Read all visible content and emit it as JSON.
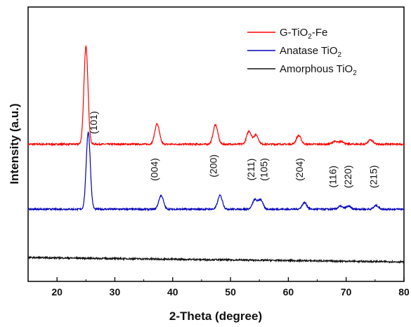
{
  "chart_data": {
    "type": "line",
    "title": "",
    "xlabel": "2-Theta (degree)",
    "ylabel": "Intensity (a.u.)",
    "xlim": [
      15,
      80
    ],
    "x_ticks": [
      20,
      30,
      40,
      50,
      60,
      70,
      80
    ],
    "y_ticks_shown": false,
    "grid": false,
    "legend_position": "top-right",
    "series": [
      {
        "name": "G-TiO₂-Fe",
        "legend_main": "G-TiO",
        "legend_sub": "2",
        "legend_tail": "-Fe",
        "color": "#ff0000",
        "baseline": 1.9,
        "peaks_x": [
          25.0,
          37.3,
          47.4,
          53.2,
          54.4,
          61.8,
          68.0,
          69.2,
          74.2
        ],
        "peaks_height": [
          1.35,
          0.28,
          0.27,
          0.18,
          0.13,
          0.12,
          0.04,
          0.04,
          0.06
        ]
      },
      {
        "name": "Anatase TiO₂",
        "legend_main": "Anatase TiO",
        "legend_sub": "2",
        "legend_tail": "",
        "color": "#0000bb",
        "baseline": 1.0,
        "peaks_x": [
          25.4,
          38.0,
          48.2,
          54.2,
          55.2,
          62.8,
          69.0,
          70.4,
          75.2
        ],
        "peaks_height": [
          1.07,
          0.19,
          0.19,
          0.13,
          0.13,
          0.09,
          0.04,
          0.04,
          0.05
        ]
      },
      {
        "name": "Amorphous TiO₂",
        "legend_main": "Amorphous TiO",
        "legend_sub": "2",
        "legend_tail": "",
        "color": "#111111",
        "baseline": 0.27,
        "start_offset": 0.06,
        "peaks_x": [],
        "peaks_height": []
      }
    ],
    "annotations": [
      {
        "text": "(101)",
        "x": 26.9,
        "y": 2.2
      },
      {
        "text": "(004)",
        "x": 37.4,
        "y": 1.55
      },
      {
        "text": "(200)",
        "x": 47.6,
        "y": 1.6
      },
      {
        "text": "(211)",
        "x": 54.1,
        "y": 1.55
      },
      {
        "text": "(105)",
        "x": 56.4,
        "y": 1.55
      },
      {
        "text": "(204)",
        "x": 62.5,
        "y": 1.55
      },
      {
        "text": "(116)",
        "x": 68.3,
        "y": 1.45
      },
      {
        "text": "(220)",
        "x": 70.9,
        "y": 1.45
      },
      {
        "text": "(215)",
        "x": 75.3,
        "y": 1.45
      }
    ]
  }
}
